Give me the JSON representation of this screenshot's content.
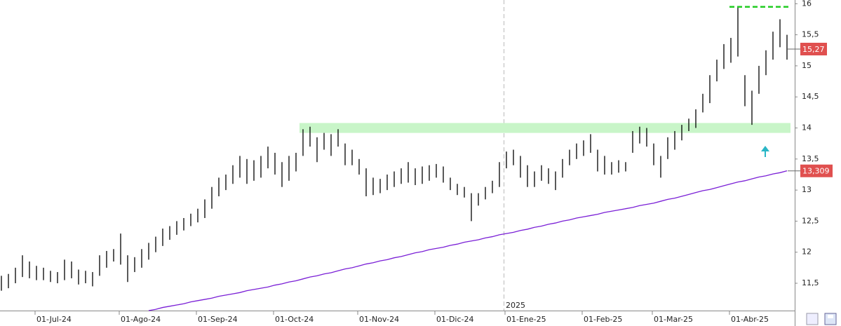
{
  "chart_data": {
    "type": "ohlc",
    "color": "#000000",
    "categories": [
      null,
      null,
      null,
      null,
      null,
      "01-Jul-24",
      null,
      null,
      null,
      null,
      null,
      null,
      null,
      null,
      null,
      null,
      null,
      "01-Ago-24",
      null,
      null,
      null,
      null,
      null,
      null,
      null,
      null,
      null,
      null,
      "01-Sep-24",
      null,
      null,
      null,
      null,
      null,
      null,
      null,
      null,
      null,
      null,
      "01-Oct-24",
      null,
      null,
      null,
      null,
      null,
      null,
      null,
      null,
      null,
      null,
      null,
      "01-Nov-24",
      null,
      null,
      null,
      null,
      null,
      null,
      null,
      null,
      null,
      null,
      "01-Dic-24",
      null,
      null,
      null,
      null,
      null,
      null,
      null,
      null,
      null,
      "01-Ene-25",
      null,
      null,
      null,
      null,
      null,
      null,
      null,
      null,
      null,
      null,
      "01-Feb-25",
      null,
      null,
      null,
      null,
      null,
      null,
      null,
      null,
      null,
      "01-Mar-25",
      null,
      null,
      null,
      null,
      null,
      null,
      null,
      null,
      null,
      null,
      "01-Abr-25",
      null,
      null,
      null,
      null,
      null,
      null,
      null,
      null
    ],
    "low": [
      11.38,
      11.42,
      11.5,
      11.6,
      11.58,
      11.55,
      11.55,
      11.52,
      11.5,
      11.55,
      11.58,
      11.48,
      11.5,
      11.45,
      11.62,
      11.75,
      11.85,
      11.8,
      11.52,
      11.68,
      11.75,
      11.88,
      12.0,
      12.1,
      12.2,
      12.28,
      12.35,
      12.42,
      12.48,
      12.55,
      12.7,
      12.9,
      13.0,
      13.1,
      13.2,
      13.1,
      13.15,
      13.2,
      13.35,
      13.25,
      13.05,
      13.15,
      13.3,
      13.55,
      13.7,
      13.45,
      13.65,
      13.55,
      13.7,
      13.4,
      13.4,
      13.25,
      12.9,
      12.92,
      12.95,
      13.0,
      13.05,
      13.1,
      13.12,
      13.08,
      13.1,
      13.15,
      13.2,
      13.12,
      13.0,
      12.92,
      12.88,
      12.5,
      12.75,
      12.85,
      12.95,
      13.05,
      13.35,
      13.4,
      13.2,
      13.05,
      13.05,
      13.15,
      13.1,
      13.0,
      13.2,
      13.4,
      13.5,
      13.55,
      13.6,
      13.3,
      13.25,
      13.25,
      13.28,
      13.3,
      13.6,
      13.75,
      13.7,
      13.4,
      13.2,
      13.5,
      13.65,
      13.8,
      13.95,
      14.0,
      14.25,
      14.4,
      14.75,
      14.95,
      15.05,
      15.15,
      14.35,
      14.05,
      14.55,
      14.85,
      15.1,
      15.3,
      15.1
    ],
    "high": [
      11.62,
      11.65,
      11.75,
      11.95,
      11.85,
      11.78,
      11.75,
      11.7,
      11.68,
      11.88,
      11.85,
      11.72,
      11.7,
      11.68,
      11.95,
      12.02,
      12.05,
      12.3,
      11.95,
      11.92,
      12.05,
      12.15,
      12.25,
      12.38,
      12.42,
      12.5,
      12.55,
      12.62,
      12.7,
      12.85,
      13.05,
      13.2,
      13.25,
      13.4,
      13.55,
      13.5,
      13.48,
      13.55,
      13.7,
      13.6,
      13.45,
      13.55,
      13.6,
      13.98,
      14.02,
      13.85,
      13.92,
      13.9,
      13.98,
      13.75,
      13.65,
      13.5,
      13.35,
      13.2,
      13.18,
      13.25,
      13.3,
      13.35,
      13.45,
      13.35,
      13.38,
      13.4,
      13.42,
      13.38,
      13.2,
      13.1,
      13.05,
      12.95,
      12.95,
      13.05,
      13.15,
      13.45,
      13.62,
      13.65,
      13.55,
      13.4,
      13.3,
      13.4,
      13.35,
      13.3,
      13.5,
      13.65,
      13.75,
      13.8,
      13.9,
      13.65,
      13.55,
      13.45,
      13.48,
      13.45,
      13.95,
      14.02,
      14.0,
      13.75,
      13.55,
      13.85,
      13.95,
      14.05,
      14.15,
      14.3,
      14.55,
      14.85,
      15.1,
      15.35,
      15.45,
      15.95,
      14.85,
      14.6,
      15.0,
      15.25,
      15.55,
      15.75,
      15.5
    ],
    "ma": {
      "color": "#7a1fd6",
      "values": [
        null,
        null,
        null,
        null,
        null,
        null,
        null,
        null,
        null,
        null,
        null,
        null,
        null,
        null,
        null,
        null,
        null,
        null,
        null,
        null,
        null,
        11.06,
        11.08,
        11.11,
        11.13,
        11.15,
        11.17,
        11.2,
        11.22,
        11.24,
        11.26,
        11.29,
        11.31,
        11.33,
        11.35,
        11.38,
        11.4,
        11.42,
        11.44,
        11.47,
        11.49,
        11.52,
        11.54,
        11.57,
        11.6,
        11.62,
        11.65,
        11.67,
        11.7,
        11.73,
        11.75,
        11.78,
        11.81,
        11.83,
        11.86,
        11.88,
        11.91,
        11.93,
        11.96,
        11.99,
        12.01,
        12.04,
        12.06,
        12.08,
        12.11,
        12.13,
        12.16,
        12.18,
        12.2,
        12.23,
        12.25,
        12.28,
        12.3,
        12.32,
        12.35,
        12.37,
        12.4,
        12.42,
        12.45,
        12.47,
        12.5,
        12.52,
        12.55,
        12.57,
        12.59,
        12.61,
        12.64,
        12.66,
        12.68,
        12.7,
        12.72,
        12.75,
        12.77,
        12.79,
        12.82,
        12.85,
        12.87,
        12.9,
        12.93,
        12.96,
        12.99,
        13.01,
        13.04,
        13.07,
        13.1,
        13.13,
        13.15,
        13.18,
        13.21,
        13.23,
        13.26,
        13.28,
        13.31
      ]
    },
    "last": {
      "value": 15.27,
      "label": "15,27",
      "color": "#e0504f"
    },
    "ma_last": {
      "value": 13.309,
      "label": "13,309",
      "color": "#e0504f"
    },
    "zone": {
      "values": [
        13.92,
        14.08
      ],
      "color": "#c8f5c8"
    },
    "resistance": {
      "value": 15.95,
      "color": "#22cc22"
    },
    "year_label": "2025",
    "ylim": [
      11.06,
      16.06
    ],
    "yticks": [
      {
        "value": 11.5,
        "label": "11,5"
      },
      12,
      {
        "value": 12.5,
        "label": "12,5"
      },
      13,
      {
        "value": 13.5,
        "label": "13,5"
      },
      14,
      {
        "value": 14.5,
        "label": "14,5"
      },
      15,
      {
        "value": 15.5,
        "label": "15,5"
      },
      16
    ]
  }
}
